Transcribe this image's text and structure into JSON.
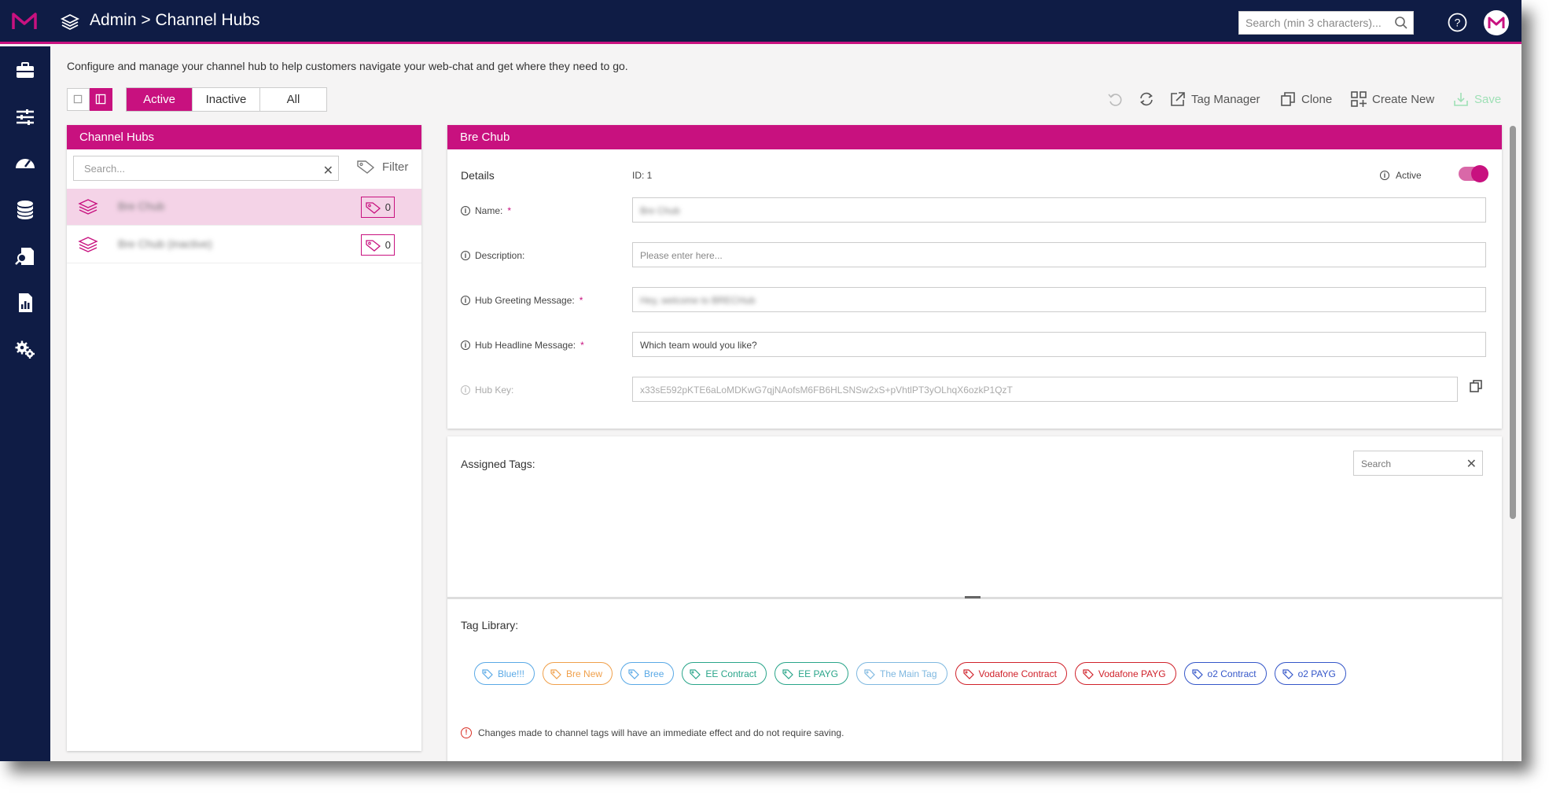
{
  "header": {
    "breadcrumb": "Admin > Channel Hubs",
    "search_placeholder": "Search (min 3 characters)..."
  },
  "sidebar": {
    "items": [
      "briefcase-icon",
      "sliders-icon",
      "dashboard-icon",
      "database-icon",
      "search-document-icon",
      "report-icon",
      "settings-icon"
    ]
  },
  "page": {
    "description": "Configure and manage your channel hub to help customers navigate your web-chat and get where they need to go."
  },
  "filters": {
    "tabs": [
      "Active",
      "Inactive",
      "All"
    ],
    "selected": "Active"
  },
  "toolbar": {
    "tag_manager": "Tag Manager",
    "clone": "Clone",
    "create_new": "Create New",
    "save": "Save"
  },
  "left_panel": {
    "title": "Channel Hubs",
    "search_placeholder": "Search...",
    "filter_label": "Filter",
    "hubs": [
      {
        "name": "Bre Chub",
        "tags": "0",
        "selected": true
      },
      {
        "name": "Bre Chub (inactive)",
        "tags": "0",
        "selected": false
      }
    ]
  },
  "details": {
    "panel_title": "Bre Chub",
    "section_title": "Details",
    "id_label": "ID: 1",
    "active_label": "Active",
    "active": true,
    "fields": {
      "name_label": "Name:",
      "name_value": "Bre Chub",
      "description_label": "Description:",
      "description_placeholder": "Please enter here...",
      "greeting_label": "Hub Greeting Message:",
      "greeting_value": "Hey, welcome to BRECHub",
      "headline_label": "Hub Headline Message:",
      "headline_value": "Which team would you like?",
      "key_label": "Hub Key:",
      "key_value": "x33sE592pKTE6aLoMDKwG7qjNAofsM6FB6HLSNSw2xS+pVhtlPT3yOLhqX6ozkP1QzT"
    },
    "required_mark": "*"
  },
  "tags": {
    "assigned_title": "Assigned Tags:",
    "search_placeholder": "Search",
    "library_title": "Tag Library:",
    "library": [
      {
        "label": "Blue!!!",
        "color": "#5aa9e6"
      },
      {
        "label": "Bre New",
        "color": "#f0a04b"
      },
      {
        "label": "Bree",
        "color": "#5aa9e6"
      },
      {
        "label": "EE Contract",
        "color": "#2aa58a"
      },
      {
        "label": "EE PAYG",
        "color": "#2aa58a"
      },
      {
        "label": "The Main Tag",
        "color": "#7fb8e0"
      },
      {
        "label": "Vodafone Contract",
        "color": "#d0222b"
      },
      {
        "label": "Vodafone PAYG",
        "color": "#d0222b"
      },
      {
        "label": "o2 Contract",
        "color": "#3557c9"
      },
      {
        "label": "o2 PAYG",
        "color": "#3557c9"
      }
    ],
    "warning": "Changes made to channel tags will have an immediate effect and do not require saving."
  },
  "colors": {
    "brand": "#c8117f",
    "nav": "#0f1c45"
  }
}
